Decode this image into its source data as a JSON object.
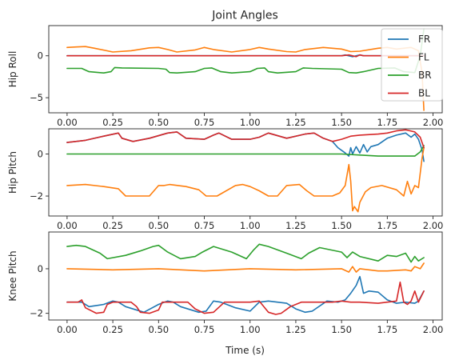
{
  "chart_data": {
    "type": "line",
    "title": "Joint Angles",
    "xlabel": "Time (s)",
    "xlim": [
      -0.1,
      2.05
    ],
    "xticks": [
      0.0,
      0.25,
      0.5,
      0.75,
      1.0,
      1.25,
      1.5,
      1.75,
      2.0
    ],
    "xtick_labels": [
      "0.00",
      "0.25",
      "0.50",
      "0.75",
      "1.00",
      "1.25",
      "1.50",
      "1.75",
      "2.00"
    ],
    "legend": {
      "placement": "top-right",
      "entries": [
        "FR",
        "FL",
        "BR",
        "BL"
      ]
    },
    "colors": {
      "FR": "#1f77b4",
      "FL": "#ff7f0e",
      "BR": "#2ca02c",
      "BL": "#d62728"
    },
    "subplots": [
      {
        "ylabel": "Hip Roll",
        "ylim": [
          -6.8,
          3.6
        ],
        "yticks": [
          -5,
          0
        ],
        "ytick_labels": [
          "−5",
          "0"
        ],
        "series": [
          {
            "name": "FR",
            "x": [
              0.0,
              0.25,
              0.5,
              0.75,
              1.0,
              1.25,
              1.5,
              1.52,
              1.56,
              1.6,
              1.62,
              1.75,
              1.85,
              1.95
            ],
            "y": [
              0.0,
              0.0,
              0.0,
              0.0,
              0.0,
              0.0,
              0.0,
              0.1,
              -0.1,
              0.1,
              0.0,
              0.0,
              0.0,
              0.0
            ]
          },
          {
            "name": "FL",
            "x": [
              0.0,
              0.05,
              0.1,
              0.15,
              0.25,
              0.35,
              0.45,
              0.5,
              0.55,
              0.6,
              0.7,
              0.75,
              0.8,
              0.9,
              1.0,
              1.05,
              1.1,
              1.2,
              1.25,
              1.3,
              1.4,
              1.5,
              1.55,
              1.6,
              1.7,
              1.75,
              1.8,
              1.88,
              1.92,
              1.94,
              1.95
            ],
            "y": [
              1.0,
              1.05,
              1.1,
              0.9,
              0.45,
              0.6,
              0.95,
              1.0,
              0.75,
              0.45,
              0.7,
              1.0,
              0.75,
              0.45,
              0.75,
              1.0,
              0.8,
              0.5,
              0.45,
              0.75,
              1.0,
              0.8,
              0.5,
              0.55,
              0.9,
              1.0,
              0.8,
              1.0,
              0.6,
              -2.0,
              -6.5
            ]
          },
          {
            "name": "BR",
            "x": [
              0.0,
              0.08,
              0.12,
              0.2,
              0.24,
              0.26,
              0.3,
              0.5,
              0.54,
              0.56,
              0.6,
              0.7,
              0.75,
              0.79,
              0.84,
              0.9,
              1.0,
              1.04,
              1.08,
              1.1,
              1.15,
              1.25,
              1.29,
              1.34,
              1.5,
              1.54,
              1.58,
              1.62,
              1.7,
              1.79,
              1.84,
              1.9,
              1.93,
              1.95
            ],
            "y": [
              -1.5,
              -1.5,
              -1.9,
              -2.05,
              -1.9,
              -1.4,
              -1.45,
              -1.5,
              -1.6,
              -2.0,
              -2.05,
              -1.9,
              -1.5,
              -1.45,
              -1.9,
              -2.05,
              -1.9,
              -1.5,
              -1.45,
              -1.9,
              -2.05,
              -1.9,
              -1.45,
              -1.5,
              -1.6,
              -2.0,
              -2.05,
              -1.9,
              -1.5,
              -1.45,
              -1.9,
              -2.0,
              0.0,
              3.2
            ]
          },
          {
            "name": "BL",
            "x": [
              0.0,
              0.25,
              0.5,
              0.75,
              1.0,
              1.25,
              1.5,
              1.54,
              1.58,
              1.6,
              1.62,
              1.75,
              1.9,
              1.95
            ],
            "y": [
              0.0,
              0.0,
              0.0,
              0.0,
              0.0,
              0.0,
              0.0,
              0.1,
              -0.1,
              0.1,
              0.0,
              0.0,
              0.0,
              0.0
            ]
          }
        ]
      },
      {
        "ylabel": "Hip Pitch",
        "ylim": [
          -2.95,
          1.2
        ],
        "yticks": [
          -2,
          0
        ],
        "ytick_labels": [
          "−2",
          "0"
        ],
        "series": [
          {
            "name": "FR",
            "x": [
              0.0,
              0.1,
              0.2,
              0.28,
              0.3,
              0.36,
              0.45,
              0.55,
              0.6,
              0.65,
              0.75,
              0.8,
              0.83,
              0.9,
              1.0,
              1.05,
              1.1,
              1.2,
              1.3,
              1.35,
              1.4,
              1.45,
              1.48,
              1.52,
              1.54,
              1.55,
              1.56,
              1.58,
              1.6,
              1.62,
              1.64,
              1.66,
              1.7,
              1.75,
              1.8,
              1.85,
              1.88,
              1.9,
              1.92,
              1.94,
              1.95
            ],
            "y": [
              0.55,
              0.65,
              0.85,
              1.0,
              0.75,
              0.6,
              0.75,
              1.0,
              1.05,
              0.75,
              0.7,
              0.9,
              1.0,
              0.7,
              0.7,
              0.8,
              1.0,
              0.75,
              0.95,
              1.0,
              0.75,
              0.6,
              0.3,
              0.05,
              -0.1,
              0.3,
              0.0,
              0.35,
              0.05,
              0.45,
              0.1,
              0.35,
              0.45,
              0.75,
              0.9,
              1.0,
              0.8,
              0.95,
              0.7,
              0.2,
              -0.35
            ]
          },
          {
            "name": "FL",
            "x": [
              0.0,
              0.1,
              0.2,
              0.28,
              0.32,
              0.45,
              0.5,
              0.53,
              0.56,
              0.65,
              0.72,
              0.76,
              0.82,
              0.92,
              0.96,
              1.0,
              1.05,
              1.1,
              1.15,
              1.2,
              1.27,
              1.31,
              1.35,
              1.45,
              1.49,
              1.52,
              1.54,
              1.55,
              1.56,
              1.57,
              1.59,
              1.6,
              1.63,
              1.66,
              1.72,
              1.8,
              1.84,
              1.86,
              1.88,
              1.9,
              1.92,
              1.94,
              1.95
            ],
            "y": [
              -1.5,
              -1.45,
              -1.55,
              -1.65,
              -2.0,
              -2.0,
              -1.5,
              -1.5,
              -1.45,
              -1.55,
              -1.7,
              -2.0,
              -2.0,
              -1.5,
              -1.45,
              -1.55,
              -1.75,
              -2.0,
              -2.0,
              -1.5,
              -1.45,
              -1.75,
              -2.0,
              -2.0,
              -1.85,
              -1.5,
              -0.5,
              -1.3,
              -2.7,
              -2.5,
              -2.75,
              -2.3,
              -1.8,
              -1.6,
              -1.5,
              -1.7,
              -2.0,
              -1.3,
              -1.9,
              -1.5,
              -1.6,
              -0.2,
              0.3
            ]
          },
          {
            "name": "BR",
            "x": [
              0.0,
              0.25,
              0.5,
              0.75,
              1.0,
              1.25,
              1.5,
              1.6,
              1.7,
              1.8,
              1.9,
              1.93,
              1.95
            ],
            "y": [
              0.0,
              0.0,
              0.0,
              0.0,
              0.0,
              0.0,
              0.0,
              -0.05,
              -0.1,
              -0.1,
              -0.1,
              0.1,
              0.4
            ]
          },
          {
            "name": "BL",
            "x": [
              0.0,
              0.1,
              0.2,
              0.28,
              0.3,
              0.36,
              0.45,
              0.55,
              0.6,
              0.65,
              0.75,
              0.8,
              0.83,
              0.9,
              1.0,
              1.05,
              1.1,
              1.2,
              1.3,
              1.35,
              1.4,
              1.45,
              1.5,
              1.55,
              1.6,
              1.7,
              1.75,
              1.8,
              1.85,
              1.9,
              1.93,
              1.95
            ],
            "y": [
              0.55,
              0.65,
              0.85,
              1.0,
              0.75,
              0.6,
              0.75,
              1.0,
              1.05,
              0.75,
              0.7,
              0.9,
              1.0,
              0.7,
              0.7,
              0.8,
              1.0,
              0.75,
              0.95,
              1.0,
              0.75,
              0.6,
              0.7,
              0.85,
              0.9,
              0.95,
              1.0,
              1.1,
              1.15,
              1.05,
              0.8,
              0.3
            ]
          }
        ]
      },
      {
        "ylabel": "Knee Pitch",
        "ylim": [
          -2.3,
          1.65
        ],
        "yticks": [
          -2,
          0
        ],
        "ytick_labels": [
          "−2",
          "0"
        ],
        "series": [
          {
            "name": "FR",
            "x": [
              0.0,
              0.08,
              0.12,
              0.2,
              0.25,
              0.28,
              0.32,
              0.42,
              0.5,
              0.55,
              0.58,
              0.62,
              0.72,
              0.76,
              0.8,
              0.84,
              0.92,
              1.0,
              1.05,
              1.1,
              1.2,
              1.25,
              1.3,
              1.34,
              1.42,
              1.48,
              1.52,
              1.55,
              1.58,
              1.6,
              1.62,
              1.65,
              1.7,
              1.75,
              1.8,
              1.85,
              1.9,
              1.92,
              1.95
            ],
            "y": [
              -1.5,
              -1.5,
              -1.7,
              -1.6,
              -1.45,
              -1.5,
              -1.7,
              -1.95,
              -1.6,
              -1.45,
              -1.5,
              -1.7,
              -1.95,
              -1.9,
              -1.45,
              -1.5,
              -1.75,
              -1.9,
              -1.5,
              -1.45,
              -1.55,
              -1.8,
              -1.95,
              -1.9,
              -1.45,
              -1.5,
              -1.4,
              -1.1,
              -0.75,
              -0.35,
              -1.1,
              -1.0,
              -1.05,
              -1.4,
              -1.55,
              -1.5,
              -1.55,
              -1.45,
              -1.0
            ]
          },
          {
            "name": "FL",
            "x": [
              0.0,
              0.25,
              0.5,
              0.75,
              1.0,
              1.25,
              1.5,
              1.54,
              1.56,
              1.58,
              1.6,
              1.7,
              1.75,
              1.85,
              1.88,
              1.9,
              1.93,
              1.95
            ],
            "y": [
              0.0,
              -0.05,
              0.0,
              -0.1,
              0.0,
              -0.05,
              0.0,
              -0.15,
              0.1,
              -0.15,
              0.0,
              -0.1,
              -0.1,
              -0.05,
              -0.1,
              0.1,
              0.0,
              0.25
            ]
          },
          {
            "name": "BR",
            "x": [
              0.0,
              0.05,
              0.1,
              0.18,
              0.22,
              0.32,
              0.4,
              0.47,
              0.5,
              0.55,
              0.62,
              0.7,
              0.74,
              0.8,
              0.9,
              0.98,
              1.02,
              1.05,
              1.1,
              1.2,
              1.28,
              1.32,
              1.38,
              1.5,
              1.53,
              1.56,
              1.6,
              1.7,
              1.75,
              1.8,
              1.85,
              1.88,
              1.9,
              1.92,
              1.95
            ],
            "y": [
              1.0,
              1.05,
              1.0,
              0.7,
              0.45,
              0.6,
              0.8,
              1.0,
              1.05,
              0.75,
              0.45,
              0.55,
              0.75,
              1.0,
              0.75,
              0.45,
              0.85,
              1.1,
              1.0,
              0.7,
              0.45,
              0.7,
              0.95,
              0.75,
              0.5,
              0.75,
              0.55,
              0.35,
              0.6,
              0.55,
              0.7,
              0.3,
              0.55,
              0.35,
              0.5
            ]
          },
          {
            "name": "BL",
            "x": [
              0.0,
              0.06,
              0.08,
              0.1,
              0.16,
              0.2,
              0.22,
              0.25,
              0.3,
              0.35,
              0.38,
              0.4,
              0.45,
              0.5,
              0.52,
              0.55,
              0.6,
              0.66,
              0.7,
              0.75,
              0.8,
              0.86,
              0.9,
              0.95,
              1.0,
              1.05,
              1.1,
              1.14,
              1.17,
              1.22,
              1.28,
              1.35,
              1.4,
              1.45,
              1.5,
              1.55,
              1.6,
              1.7,
              1.75,
              1.8,
              1.82,
              1.84,
              1.86,
              1.88,
              1.9,
              1.92,
              1.95
            ],
            "y": [
              -1.5,
              -1.5,
              -1.4,
              -1.75,
              -2.0,
              -1.95,
              -1.6,
              -1.5,
              -1.5,
              -1.5,
              -1.7,
              -1.95,
              -2.0,
              -1.85,
              -1.5,
              -1.5,
              -1.5,
              -1.5,
              -1.8,
              -2.0,
              -1.95,
              -1.5,
              -1.5,
              -1.5,
              -1.5,
              -1.45,
              -1.95,
              -2.05,
              -2.0,
              -1.7,
              -1.5,
              -1.5,
              -1.5,
              -1.5,
              -1.45,
              -1.5,
              -1.5,
              -1.55,
              -1.5,
              -1.45,
              -0.6,
              -1.5,
              -1.6,
              -1.45,
              -1.0,
              -1.5,
              -1.0
            ]
          }
        ]
      }
    ]
  }
}
